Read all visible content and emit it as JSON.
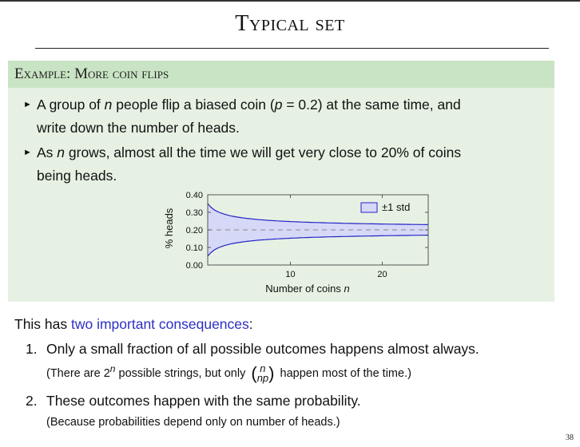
{
  "slide": {
    "title": "Typical set",
    "page_number": "38"
  },
  "example": {
    "header": "Example: More coin flips",
    "bullet1_line1_a": "A group of ",
    "bullet1_var": "n",
    "bullet1_line1_b": " people flip a biased coin (",
    "bullet1_p": "p",
    "bullet1_eq": " = 0.2) at the same time, and",
    "bullet1_line2": "write down the number of heads.",
    "bullet2_a": "As ",
    "bullet2_var": "n",
    "bullet2_line1_b": " grows, almost all the time we will get very close to 20% of coins",
    "bullet2_line2": "being heads."
  },
  "chart_data": {
    "type": "area",
    "ylabel": "% heads",
    "xlabel_text": "Number of coins ",
    "xlabel_var": "n",
    "legend": "±1 std",
    "legend_position": "top-right",
    "xlim": [
      1,
      25
    ],
    "ylim": [
      0,
      0.4
    ],
    "yticks": [
      "0.00",
      "0.10",
      "0.20",
      "0.30",
      "0.40"
    ],
    "xticks": [
      "10",
      "20"
    ],
    "mean": 0.2,
    "p": 0.2,
    "upper_start": 0.35,
    "lower_start": 0.05,
    "series": [
      {
        "name": "±1 std",
        "x": [
          2,
          4,
          6,
          8,
          10,
          15,
          20,
          25
        ],
        "upper": [
          0.35,
          0.29,
          0.27,
          0.26,
          0.25,
          0.24,
          0.23,
          0.22
        ],
        "lower": [
          0.05,
          0.11,
          0.13,
          0.14,
          0.15,
          0.16,
          0.17,
          0.18
        ]
      }
    ],
    "colors": {
      "band": "#d6d8f7",
      "line": "#2424c8",
      "mean": "#888888"
    }
  },
  "consequences": {
    "intro_a": "This has ",
    "intro_highlight": "two important consequences",
    "intro_b": ":",
    "item1_num": "1.",
    "item1": "Only a small fraction of all possible outcomes happens almost always.",
    "item1_note_a": "(There are 2",
    "item1_note_sup": "n",
    "item1_note_b": " possible strings, but only ",
    "binom_top": "n",
    "binom_bottom": "np",
    "item1_note_c": " happen most of the time.)",
    "item2_num": "2.",
    "item2": "These outcomes happen with the same probability.",
    "item2_note": "(Because probabilities depend only on number of heads.)"
  }
}
